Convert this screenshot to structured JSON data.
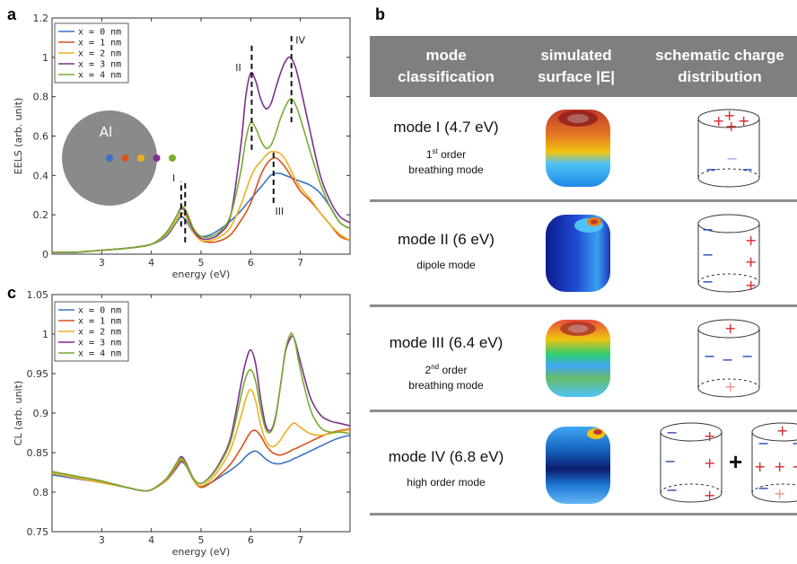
{
  "panels": {
    "a": "a",
    "b": "b",
    "c": "c"
  },
  "chart_data": [
    {
      "type": "line",
      "panel": "a",
      "xlabel": "energy (eV)",
      "ylabel": "EELS (arb. unit)",
      "xlim": [
        2.0,
        8.0
      ],
      "ylim": [
        0,
        1.2
      ],
      "xticks": [
        3,
        4,
        5,
        6,
        7
      ],
      "yticks": [
        0,
        0.2,
        0.4,
        0.6,
        0.8,
        1,
        1.2
      ],
      "ytick_labels": [
        "0",
        "0.2",
        "0.4",
        "0.6",
        "0.8",
        "1",
        "1.2"
      ],
      "legend_position": "top-left",
      "inset_label": "Al",
      "annotations": [
        {
          "text": "I",
          "x": 4.45,
          "y": 0.37
        },
        {
          "text": "II",
          "x": 5.75,
          "y": 0.93
        },
        {
          "text": "III",
          "x": 6.58,
          "y": 0.2
        },
        {
          "text": "IV",
          "x": 7.0,
          "y": 1.07
        }
      ],
      "dashed_markers": [
        {
          "x": 4.6,
          "y0": 0.14,
          "y1": 0.37
        },
        {
          "x": 4.68,
          "y0": 0.06,
          "y1": 0.37
        },
        {
          "x": 6.02,
          "y0": 0.53,
          "y1": 1.07
        },
        {
          "x": 6.46,
          "y0": 0.26,
          "y1": 0.52
        },
        {
          "x": 6.82,
          "y0": 0.67,
          "y1": 1.12
        }
      ],
      "x": [
        2.0,
        2.5,
        3.0,
        3.5,
        4.0,
        4.3,
        4.5,
        4.6,
        4.7,
        4.85,
        5.0,
        5.2,
        5.4,
        5.6,
        5.8,
        5.9,
        6.0,
        6.1,
        6.2,
        6.3,
        6.4,
        6.5,
        6.6,
        6.7,
        6.8,
        6.9,
        7.0,
        7.2,
        7.4,
        7.6,
        7.8,
        8.0
      ],
      "series": [
        {
          "name": "x = 0 nm",
          "color": "#3a73c4",
          "values": [
            0.01,
            0.01,
            0.02,
            0.03,
            0.05,
            0.09,
            0.16,
            0.19,
            0.17,
            0.11,
            0.09,
            0.1,
            0.13,
            0.17,
            0.22,
            0.25,
            0.28,
            0.31,
            0.34,
            0.37,
            0.4,
            0.41,
            0.41,
            0.4,
            0.39,
            0.38,
            0.37,
            0.35,
            0.31,
            0.24,
            0.16,
            0.13
          ]
        },
        {
          "name": "x = 1 nm",
          "color": "#d95319",
          "values": [
            0.01,
            0.01,
            0.02,
            0.03,
            0.05,
            0.1,
            0.17,
            0.21,
            0.19,
            0.11,
            0.07,
            0.06,
            0.07,
            0.1,
            0.17,
            0.21,
            0.26,
            0.33,
            0.4,
            0.45,
            0.48,
            0.49,
            0.47,
            0.44,
            0.4,
            0.36,
            0.32,
            0.27,
            0.21,
            0.15,
            0.09,
            0.07
          ]
        },
        {
          "name": "x = 2 nm",
          "color": "#edb120",
          "values": [
            0.01,
            0.01,
            0.02,
            0.03,
            0.05,
            0.1,
            0.17,
            0.21,
            0.19,
            0.11,
            0.07,
            0.07,
            0.09,
            0.14,
            0.25,
            0.32,
            0.39,
            0.44,
            0.47,
            0.5,
            0.52,
            0.52,
            0.51,
            0.48,
            0.43,
            0.38,
            0.34,
            0.28,
            0.21,
            0.15,
            0.1,
            0.07
          ]
        },
        {
          "name": "x = 3 nm",
          "color": "#7e2f8e",
          "values": [
            0.01,
            0.01,
            0.02,
            0.03,
            0.05,
            0.11,
            0.19,
            0.23,
            0.21,
            0.12,
            0.08,
            0.08,
            0.11,
            0.2,
            0.55,
            0.8,
            0.92,
            0.88,
            0.79,
            0.74,
            0.76,
            0.84,
            0.92,
            0.98,
            1.0,
            0.95,
            0.85,
            0.62,
            0.4,
            0.27,
            0.19,
            0.16
          ]
        },
        {
          "name": "x = 4 nm",
          "color": "#77ac30",
          "values": [
            0.01,
            0.01,
            0.02,
            0.03,
            0.05,
            0.11,
            0.19,
            0.24,
            0.22,
            0.13,
            0.09,
            0.09,
            0.12,
            0.2,
            0.42,
            0.58,
            0.67,
            0.64,
            0.58,
            0.54,
            0.55,
            0.61,
            0.69,
            0.75,
            0.79,
            0.76,
            0.69,
            0.52,
            0.36,
            0.24,
            0.16,
            0.13
          ]
        }
      ]
    },
    {
      "type": "line",
      "panel": "c",
      "xlabel": "energy (eV)",
      "ylabel": "CL (arb. unit)",
      "xlim": [
        2.0,
        8.0
      ],
      "ylim": [
        0.75,
        1.05
      ],
      "xticks": [
        3,
        4,
        5,
        6,
        7
      ],
      "yticks": [
        0.75,
        0.8,
        0.85,
        0.9,
        0.95,
        1,
        1.05
      ],
      "ytick_labels": [
        "0.75",
        "0.8",
        "0.85",
        "0.9",
        "0.95",
        "1",
        "1.05"
      ],
      "legend_position": "top-left",
      "x": [
        2.0,
        2.5,
        3.0,
        3.5,
        3.8,
        4.0,
        4.3,
        4.5,
        4.6,
        4.7,
        4.85,
        5.0,
        5.2,
        5.4,
        5.6,
        5.8,
        5.9,
        6.0,
        6.1,
        6.2,
        6.3,
        6.4,
        6.5,
        6.6,
        6.7,
        6.8,
        6.85,
        6.9,
        7.0,
        7.2,
        7.4,
        7.6,
        7.8,
        8.0
      ],
      "series": [
        {
          "name": "x = 0 nm",
          "color": "#3a73c4",
          "values": [
            0.822,
            0.817,
            0.812,
            0.806,
            0.802,
            0.803,
            0.815,
            0.83,
            0.838,
            0.833,
            0.815,
            0.807,
            0.812,
            0.82,
            0.828,
            0.838,
            0.845,
            0.85,
            0.852,
            0.848,
            0.842,
            0.838,
            0.836,
            0.836,
            0.838,
            0.84,
            0.842,
            0.843,
            0.846,
            0.852,
            0.858,
            0.864,
            0.869,
            0.872
          ]
        },
        {
          "name": "x = 1 nm",
          "color": "#d95319",
          "values": [
            0.824,
            0.818,
            0.812,
            0.806,
            0.802,
            0.803,
            0.815,
            0.832,
            0.84,
            0.834,
            0.815,
            0.806,
            0.812,
            0.823,
            0.836,
            0.855,
            0.866,
            0.876,
            0.878,
            0.871,
            0.86,
            0.852,
            0.848,
            0.847,
            0.849,
            0.852,
            0.854,
            0.855,
            0.858,
            0.864,
            0.87,
            0.875,
            0.878,
            0.88
          ]
        },
        {
          "name": "x = 2 nm",
          "color": "#edb120",
          "values": [
            0.824,
            0.818,
            0.812,
            0.806,
            0.802,
            0.803,
            0.816,
            0.834,
            0.842,
            0.835,
            0.815,
            0.808,
            0.816,
            0.832,
            0.855,
            0.895,
            0.918,
            0.93,
            0.915,
            0.885,
            0.866,
            0.858,
            0.859,
            0.866,
            0.876,
            0.884,
            0.887,
            0.887,
            0.882,
            0.874,
            0.872,
            0.874,
            0.877,
            0.879
          ]
        },
        {
          "name": "x = 3 nm",
          "color": "#7e2f8e",
          "values": [
            0.826,
            0.82,
            0.814,
            0.806,
            0.802,
            0.803,
            0.817,
            0.836,
            0.845,
            0.837,
            0.817,
            0.811,
            0.821,
            0.84,
            0.87,
            0.935,
            0.965,
            0.98,
            0.962,
            0.918,
            0.885,
            0.878,
            0.895,
            0.935,
            0.978,
            0.995,
            0.997,
            0.99,
            0.965,
            0.92,
            0.898,
            0.89,
            0.887,
            0.884
          ]
        },
        {
          "name": "x = 4 nm",
          "color": "#77ac30",
          "values": [
            0.826,
            0.82,
            0.814,
            0.806,
            0.802,
            0.803,
            0.817,
            0.836,
            0.843,
            0.836,
            0.817,
            0.811,
            0.82,
            0.838,
            0.865,
            0.92,
            0.945,
            0.955,
            0.94,
            0.905,
            0.88,
            0.876,
            0.893,
            0.935,
            0.98,
            1.0,
            0.998,
            0.988,
            0.955,
            0.905,
            0.882,
            0.876,
            0.876,
            0.874
          ]
        }
      ]
    }
  ],
  "table": {
    "headers": [
      "mode\nclassification",
      "simulated\nsurface |E|",
      "schematic charge\ndistribution"
    ],
    "rows": [
      {
        "name": "mode I (4.7 eV)",
        "desc_sup": "st",
        "desc_line1_num": "1",
        "desc_line1_rest": " order",
        "desc_line2": "breathing mode"
      },
      {
        "name": "mode II (6 eV)",
        "desc": "dipole mode"
      },
      {
        "name": "mode III (6.4 eV)",
        "desc_sup": "nd",
        "desc_line1_num": "2",
        "desc_line1_rest": " order",
        "desc_line2": "breathing mode"
      },
      {
        "name": "mode IV (6.8 eV)",
        "desc": "high order mode",
        "plus": "+"
      }
    ]
  },
  "colors": {
    "header_bg": "#7f7f7f",
    "plus": "#d62728",
    "minus": "#1f3fb4"
  }
}
